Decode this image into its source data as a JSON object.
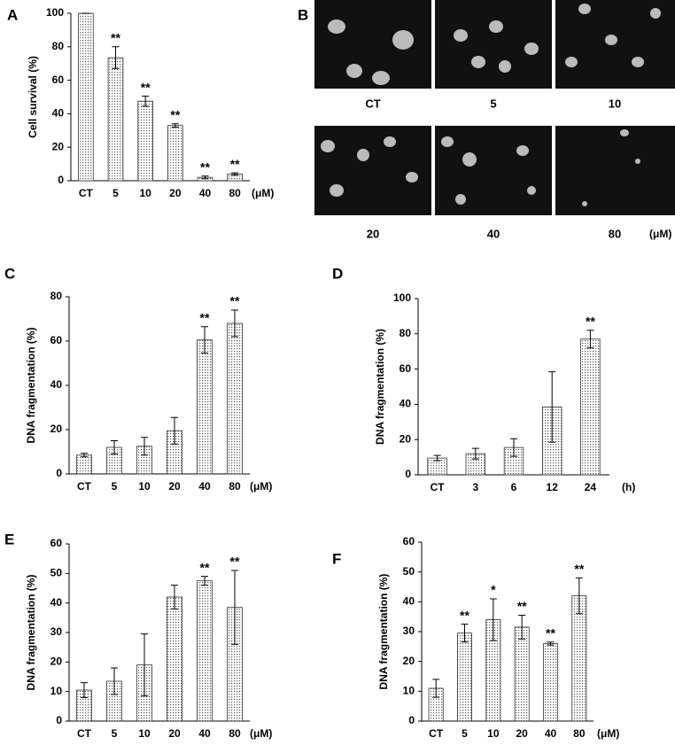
{
  "chart_data": [
    {
      "type": "bar",
      "panel": "A",
      "ylabel": "Cell survival (%)",
      "categories": [
        "CT",
        "5",
        "10",
        "20",
        "40",
        "80"
      ],
      "values": [
        100,
        73.5,
        47.5,
        33,
        2,
        4
      ],
      "errors": [
        0,
        6.5,
        3,
        1,
        0.8,
        0.7
      ],
      "annotations": [
        null,
        "**",
        "**",
        "**",
        "**",
        "**"
      ],
      "unit": "(μM)",
      "ylim": [
        0,
        100
      ],
      "yticks": [
        0,
        20,
        40,
        60,
        80,
        100
      ],
      "color": "#d9d9d9"
    },
    {
      "type": "bar",
      "panel": "C",
      "ylabel": "DNA fragmentation (%)",
      "categories": [
        "CT",
        "5",
        "10",
        "20",
        "40",
        "80"
      ],
      "values": [
        8.5,
        12,
        12.5,
        19.5,
        60.5,
        68
      ],
      "errors": [
        0.8,
        3,
        4,
        6,
        6,
        6
      ],
      "annotations": [
        null,
        null,
        null,
        null,
        "**",
        "**"
      ],
      "unit": "(μM)",
      "ylim": [
        0,
        80
      ],
      "yticks": [
        0,
        20,
        40,
        60,
        80
      ],
      "color": "#d9d9d9"
    },
    {
      "type": "bar",
      "panel": "D",
      "ylabel": "DNA fragmentation (%)",
      "categories": [
        "CT",
        "3",
        "6",
        "12",
        "24"
      ],
      "values": [
        9.5,
        12,
        15.5,
        38.5,
        77
      ],
      "errors": [
        1.5,
        3,
        5,
        20,
        5
      ],
      "annotations": [
        null,
        null,
        null,
        null,
        "**"
      ],
      "unit": "(h)",
      "ylim": [
        0,
        100
      ],
      "yticks": [
        0,
        20,
        40,
        60,
        80,
        100
      ],
      "color": "#d9d9d9"
    },
    {
      "type": "bar",
      "panel": "E",
      "ylabel": "DNA fragmentation (%)",
      "categories": [
        "CT",
        "5",
        "10",
        "20",
        "40",
        "80"
      ],
      "values": [
        10.5,
        13.5,
        19,
        42,
        47.5,
        38.5
      ],
      "errors": [
        2.5,
        4.5,
        10.5,
        4,
        1.5,
        12.5
      ],
      "annotations": [
        null,
        null,
        null,
        null,
        "**",
        "**"
      ],
      "unit": "(μM)",
      "ylim": [
        0,
        60
      ],
      "yticks": [
        0,
        10,
        20,
        30,
        40,
        50,
        60
      ],
      "color": "#d9d9d9"
    },
    {
      "type": "bar",
      "panel": "F",
      "ylabel": "DNA fragmentation (%)",
      "categories": [
        "CT",
        "5",
        "10",
        "20",
        "40",
        "80"
      ],
      "values": [
        11,
        29.5,
        34,
        31.5,
        26,
        42
      ],
      "errors": [
        3,
        3,
        7,
        4,
        0.5,
        6
      ],
      "annotations": [
        null,
        "**",
        "*",
        "**",
        "**",
        "**"
      ],
      "unit": "(μM)",
      "ylim": [
        0,
        60
      ],
      "yticks": [
        0,
        10,
        20,
        30,
        40,
        50,
        60
      ],
      "color": "#d9d9d9"
    }
  ],
  "panel_b": {
    "panel": "B",
    "labels": [
      "CT",
      "5",
      "10",
      "20",
      "40",
      "80"
    ],
    "unit": "(μM)"
  }
}
